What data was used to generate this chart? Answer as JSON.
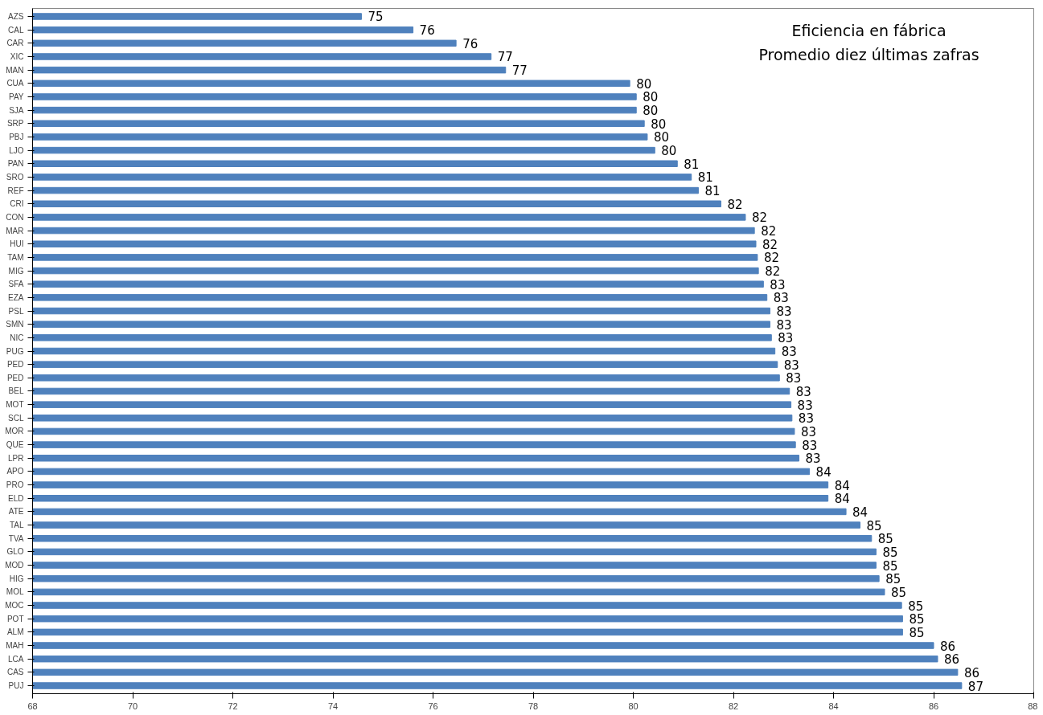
{
  "chart_data": {
    "type": "bar",
    "orientation": "horizontal",
    "title": "Eficiencia en fábrica",
    "subtitle": "Promedio diez últimas zafras",
    "categories": [
      "AZS",
      "CAL",
      "CAR",
      "XIC",
      "MAN",
      "CUA",
      "PAY",
      "SJA",
      "SRP",
      "PBJ",
      "LJO",
      "PAN",
      "SRO",
      "REF",
      "CRI",
      "CON",
      "MAR",
      "HUI",
      "TAM",
      "MIG",
      "SFA",
      "EZA",
      "PSL",
      "SMN",
      "NIC",
      "PUG",
      "PED",
      "PED",
      "BEL",
      "MOT",
      "SCL",
      "MOR",
      "QUE",
      "LPR",
      "APO",
      "PRO",
      "ELD",
      "ATE",
      "TAL",
      "TVA",
      "GLO",
      "MOD",
      "HIG",
      "MOL",
      "MOC",
      "POT",
      "ALM",
      "MAH",
      "LCA",
      "CAS",
      "PUJ"
    ],
    "values": [
      74.57,
      75.6,
      76.46,
      77.16,
      77.45,
      79.93,
      80.06,
      80.06,
      80.22,
      80.28,
      80.43,
      80.88,
      81.16,
      81.3,
      81.75,
      82.24,
      82.42,
      82.45,
      82.48,
      82.5,
      82.6,
      82.67,
      82.73,
      82.73,
      82.76,
      82.83,
      82.88,
      82.92,
      83.12,
      83.15,
      83.17,
      83.22,
      83.24,
      83.31,
      83.52,
      83.89,
      83.89,
      84.25,
      84.53,
      84.76,
      84.85,
      84.85,
      84.91,
      85.02,
      85.36,
      85.38,
      85.38,
      86.0,
      86.08,
      86.48,
      86.56
    ],
    "value_labels": [
      "75",
      "76",
      "76",
      "77",
      "77",
      "80",
      "80",
      "80",
      "80",
      "80",
      "80",
      "81",
      "81",
      "81",
      "82",
      "82",
      "82",
      "82",
      "82",
      "82",
      "83",
      "83",
      "83",
      "83",
      "83",
      "83",
      "83",
      "83",
      "83",
      "83",
      "83",
      "83",
      "83",
      "83",
      "84",
      "84",
      "84",
      "84",
      "85",
      "85",
      "85",
      "85",
      "85",
      "85",
      "85",
      "85",
      "85",
      "86",
      "86",
      "86",
      "87"
    ],
    "color": "#4f81bd",
    "xlim": [
      68,
      88
    ],
    "xticks": [
      68,
      70,
      72,
      74,
      76,
      78,
      80,
      82,
      84,
      86,
      88
    ],
    "grid": false
  }
}
